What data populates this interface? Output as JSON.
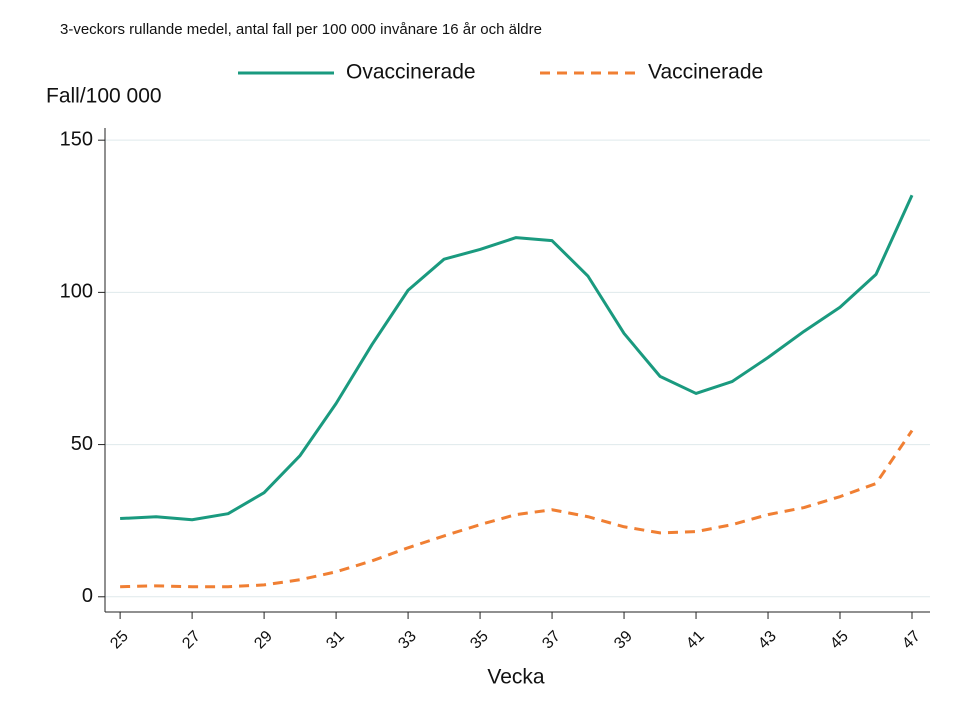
{
  "chart_data": {
    "type": "line",
    "title": "3-veckors rullande medel, antal fall per 100 000 invånare 16 år och äldre",
    "y_label": "Fall/100 000",
    "x_label": "Vecka",
    "x": [
      25,
      26,
      27,
      28,
      29,
      30,
      31,
      32,
      33,
      34,
      35,
      36,
      37,
      38,
      39,
      40,
      41,
      42,
      43,
      44,
      45,
      46,
      47
    ],
    "series": [
      {
        "name": "Ovaccinerade",
        "color": "#1a9a7f",
        "dash": false,
        "values": [
          25.7,
          26.3,
          25.3,
          27.3,
          34.2,
          46.4,
          63.5,
          82.9,
          100.7,
          110.9,
          114.1,
          118,
          117,
          105.3,
          86.5,
          72.4,
          66.8,
          70.7,
          78.6,
          87.2,
          95.1,
          105.9,
          131.9
        ]
      },
      {
        "name": "Vaccinerade",
        "color": "#f07f33",
        "dash": true,
        "values": [
          3.3,
          3.6,
          3.3,
          3.3,
          3.9,
          5.6,
          8.2,
          11.8,
          16.1,
          20,
          23.7,
          27,
          28.6,
          26.3,
          23,
          21,
          21.4,
          23.7,
          27,
          29.3,
          32.9,
          37.2,
          54.6
        ]
      }
    ],
    "xlim": [
      24.58,
      47.5
    ],
    "xticks": [
      25,
      27,
      29,
      31,
      33,
      35,
      37,
      39,
      41,
      43,
      45,
      47
    ],
    "ylim": [
      -5,
      154
    ],
    "yticks": [
      0,
      50,
      100,
      150
    ],
    "grid": true,
    "legend": "top"
  }
}
